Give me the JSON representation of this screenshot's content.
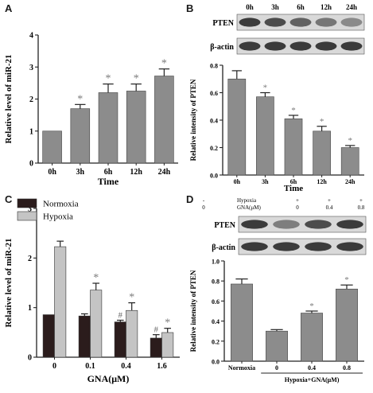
{
  "panel_labels": {
    "a": "A",
    "b": "B",
    "c": "C",
    "d": "D"
  },
  "colors": {
    "bar_gray": "#8c8c8c",
    "bar_dark": "#2b1c1c",
    "bar_light": "#c4c4c4",
    "axis": "#222222",
    "star": "#7a7a7a",
    "hash": "#6a6a6a"
  },
  "chart_data": [
    {
      "id": "A",
      "type": "bar",
      "categories": [
        "0h",
        "3h",
        "6h",
        "12h",
        "24h"
      ],
      "values": [
        1.0,
        1.7,
        2.2,
        2.25,
        2.72
      ],
      "errors": [
        0,
        0.13,
        0.27,
        0.22,
        0.22
      ],
      "markers": [
        "",
        "*",
        "*",
        "*",
        "*"
      ],
      "ylim": [
        0,
        4
      ],
      "yticks": [
        "0",
        "1",
        "2",
        "3",
        "4"
      ],
      "xlabel": "Time",
      "ylabel": "Relative level of miR-21",
      "bar_color": "gray"
    },
    {
      "id": "B",
      "type": "bar",
      "categories": [
        "0h",
        "3h",
        "6h",
        "12h",
        "24h"
      ],
      "values": [
        0.7,
        0.57,
        0.41,
        0.32,
        0.2
      ],
      "errors": [
        0.06,
        0.03,
        0.025,
        0.035,
        0.015
      ],
      "markers": [
        "",
        "*",
        "*",
        "*",
        "*"
      ],
      "ylim": [
        0,
        0.8
      ],
      "yticks": [
        "0.0",
        "0.2",
        "0.4",
        "0.6",
        "0.8"
      ],
      "xlabel": "Time",
      "ylabel": "Relative intensity of PTEN",
      "bar_color": "gray",
      "blot": {
        "lanes": [
          "0h",
          "3h",
          "6h",
          "12h",
          "24h"
        ],
        "rows": [
          {
            "label": "PTEN",
            "intensity": [
              0.85,
              0.75,
              0.62,
              0.5,
              0.38
            ]
          },
          {
            "label": "β-actin",
            "intensity": [
              0.85,
              0.85,
              0.85,
              0.85,
              0.85
            ]
          }
        ]
      }
    },
    {
      "id": "C",
      "type": "bar",
      "categories": [
        "0",
        "0.1",
        "0.4",
        "1.6"
      ],
      "series": [
        {
          "name": "Normoxia",
          "values": [
            1.0,
            0.97,
            0.83,
            0.45
          ],
          "errors": [
            0,
            0.05,
            0.04,
            0.08
          ],
          "markers": [
            "",
            "",
            "#",
            "#"
          ]
        },
        {
          "name": "Hypoxia",
          "values": [
            2.6,
            1.58,
            1.1,
            0.58
          ],
          "errors": [
            0.13,
            0.16,
            0.18,
            0.1
          ],
          "markers": [
            "",
            "*",
            "*",
            "*"
          ]
        }
      ],
      "ylim": [
        0,
        3.5
      ],
      "yticks": [
        "0",
        "1",
        "2",
        "3"
      ],
      "xlabel": "GNA(μM)",
      "ylabel": "Relative level of miR-21",
      "legend_position": "top-left"
    },
    {
      "id": "D",
      "type": "bar",
      "categories": [
        "Normoxia",
        "0",
        "0.4",
        "0.8"
      ],
      "values": [
        0.77,
        0.3,
        0.48,
        0.72
      ],
      "errors": [
        0.05,
        0.015,
        0.02,
        0.04
      ],
      "markers": [
        "",
        "",
        "*",
        "*"
      ],
      "ylim": [
        0,
        1.0
      ],
      "yticks": [
        "0.0",
        "0.2",
        "0.4",
        "0.6",
        "0.8",
        "1.0"
      ],
      "xlabel": "Hypoxia+GNA(μM)",
      "ylabel": "Relative intensity of PTEN",
      "bar_color": "gray",
      "blot": {
        "condition_labels": [
          "Hypoxia",
          "GNA(μM)"
        ],
        "conditions": [
          [
            "-",
            "0"
          ],
          [
            "+",
            "0"
          ],
          [
            "+",
            "0.4"
          ],
          [
            "+",
            "0.8"
          ]
        ],
        "rows": [
          {
            "label": "PTEN",
            "intensity": [
              0.85,
              0.45,
              0.75,
              0.85
            ]
          },
          {
            "label": "β-actin",
            "intensity": [
              0.85,
              0.85,
              0.85,
              0.85
            ]
          }
        ]
      }
    }
  ]
}
